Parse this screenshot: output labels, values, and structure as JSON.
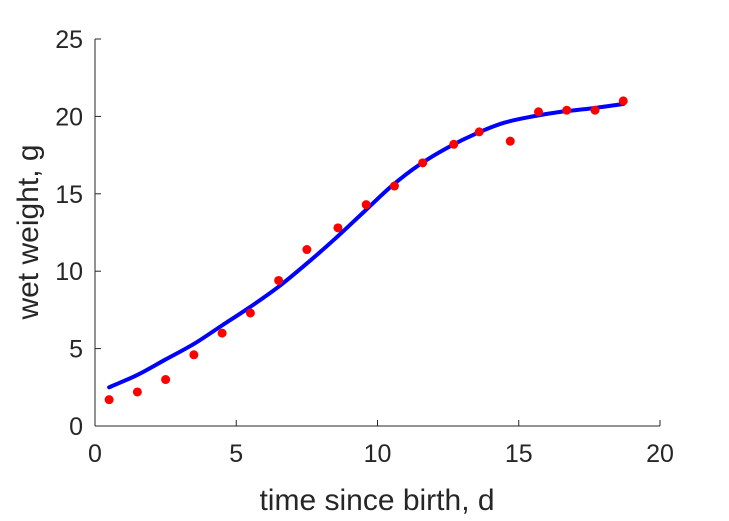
{
  "chart_data": {
    "type": "scatter",
    "xlabel": "time since birth, d",
    "ylabel": "wet weight, g",
    "xlim": [
      0,
      20
    ],
    "ylim": [
      0,
      25
    ],
    "xticks": [
      "0",
      "5",
      "10",
      "15",
      "20"
    ],
    "yticks": [
      "0",
      "5",
      "10",
      "15",
      "20",
      "25"
    ],
    "grid": false,
    "series": [
      {
        "kind": "points",
        "color": "#ff0000",
        "x": [
          0.5,
          1.5,
          2.5,
          3.5,
          4.5,
          5.5,
          6.5,
          7.5,
          8.6,
          9.6,
          10.6,
          11.6,
          12.7,
          13.6,
          14.7,
          15.7,
          16.7,
          17.7,
          18.7
        ],
        "y": [
          1.7,
          2.2,
          3.0,
          4.6,
          6.0,
          7.3,
          9.4,
          11.4,
          12.8,
          14.3,
          15.5,
          17.0,
          18.2,
          19.0,
          18.4,
          20.3,
          20.4,
          20.4,
          21.0
        ]
      },
      {
        "kind": "line",
        "color": "#0000ff",
        "x": [
          0.5,
          1.5,
          2.5,
          3.5,
          4.5,
          5.5,
          6.5,
          7.5,
          8.5,
          9.5,
          10.5,
          11.5,
          12.5,
          13.5,
          14.5,
          15.5,
          16.5,
          17.5,
          18.7
        ],
        "y": [
          2.5,
          3.3,
          4.3,
          5.3,
          6.5,
          7.7,
          9.0,
          10.5,
          12.1,
          13.8,
          15.5,
          16.9,
          18.0,
          18.9,
          19.6,
          20.0,
          20.3,
          20.5,
          20.8
        ]
      }
    ]
  }
}
